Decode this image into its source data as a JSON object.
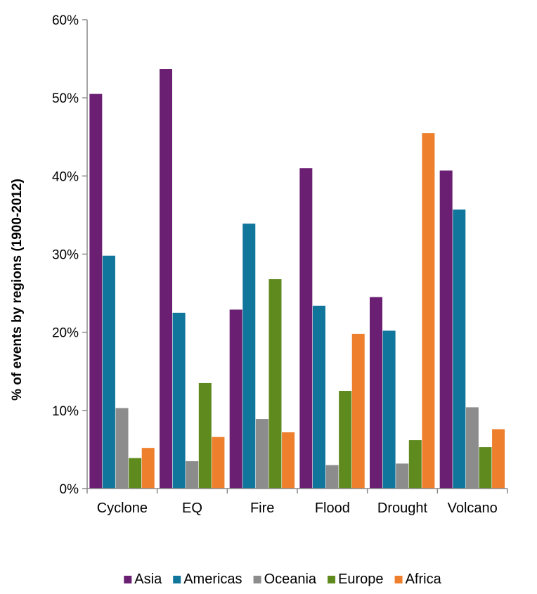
{
  "chart_data": {
    "type": "bar",
    "title": "",
    "xlabel": "",
    "ylabel": "% of events by regions (1900-2012)",
    "ylim": [
      0,
      60
    ],
    "yticks": [
      "0%",
      "10%",
      "20%",
      "30%",
      "40%",
      "50%",
      "60%"
    ],
    "yticks_values": [
      0,
      10,
      20,
      30,
      40,
      50,
      60
    ],
    "grid": false,
    "legend_position": "bottom",
    "categories": [
      "Cyclone",
      "EQ",
      "Fire",
      "Flood",
      "Drought",
      "Volcano"
    ],
    "series": [
      {
        "name": "Asia",
        "color": "#6B1F72",
        "values": [
          50.5,
          53.7,
          22.9,
          41.0,
          24.5,
          40.7
        ]
      },
      {
        "name": "Americas",
        "color": "#10769C",
        "values": [
          29.8,
          22.5,
          33.9,
          23.4,
          20.2,
          35.7
        ]
      },
      {
        "name": "Oceania",
        "color": "#8C8C8C",
        "values": [
          10.3,
          3.5,
          8.9,
          3.0,
          3.2,
          10.4
        ]
      },
      {
        "name": "Europe",
        "color": "#5F8A1E",
        "values": [
          3.9,
          13.5,
          26.8,
          12.5,
          6.2,
          5.3
        ]
      },
      {
        "name": "Africa",
        "color": "#EE7F2D",
        "values": [
          5.2,
          6.6,
          7.2,
          19.8,
          45.5,
          7.6
        ]
      }
    ]
  }
}
